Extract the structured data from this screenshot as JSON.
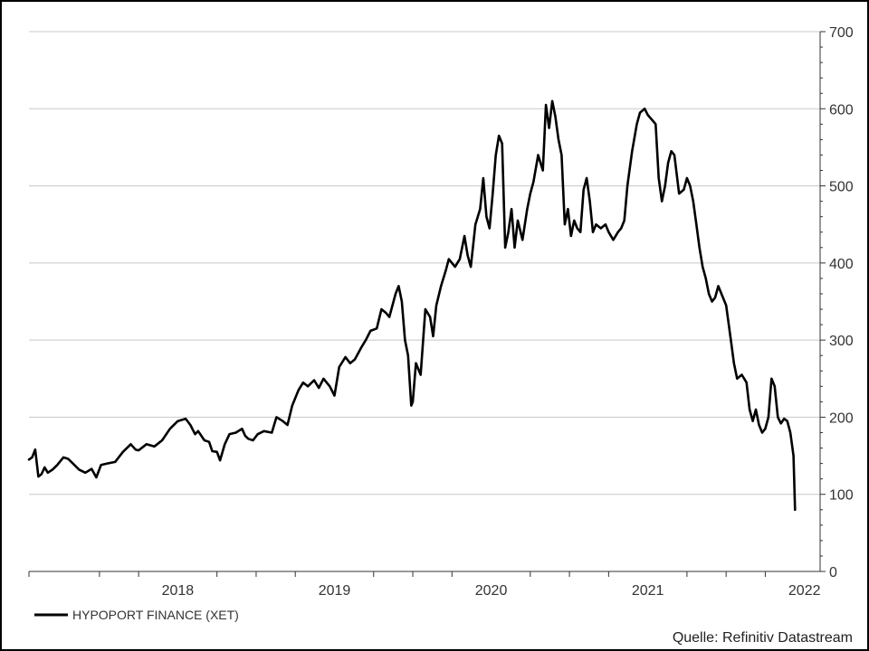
{
  "chart_data": {
    "type": "line",
    "title": "",
    "xlabel": "",
    "ylabel": "",
    "ylim": [
      0,
      700
    ],
    "xlim": [
      2017.3,
      2022.35
    ],
    "y_ticks": [
      0,
      100,
      200,
      300,
      400,
      500,
      600,
      700
    ],
    "y_axis_side": "right",
    "x_year_labels": [
      {
        "label": "2018",
        "x": 2018.25
      },
      {
        "label": "2019",
        "x": 2019.25
      },
      {
        "label": "2020",
        "x": 2020.25
      },
      {
        "label": "2021",
        "x": 2021.25
      },
      {
        "label": "2022",
        "x": 2022.25
      }
    ],
    "x_minor_ticks": [
      2017.3,
      2017.75,
      2018.0,
      2018.5,
      2018.75,
      2019.0,
      2019.5,
      2019.75,
      2020.0,
      2020.5,
      2020.75,
      2021.0,
      2021.5,
      2021.75,
      2022.0
    ],
    "grid": true,
    "legend_position": "bottom-left",
    "series": [
      {
        "name": "HYPOPORT FINANCE (XET)",
        "color": "#000000",
        "points": [
          [
            2017.3,
            145
          ],
          [
            2017.32,
            148
          ],
          [
            2017.34,
            158
          ],
          [
            2017.36,
            123
          ],
          [
            2017.38,
            126
          ],
          [
            2017.4,
            135
          ],
          [
            2017.42,
            128
          ],
          [
            2017.45,
            132
          ],
          [
            2017.48,
            138
          ],
          [
            2017.52,
            148
          ],
          [
            2017.55,
            146
          ],
          [
            2017.58,
            140
          ],
          [
            2017.62,
            132
          ],
          [
            2017.66,
            128
          ],
          [
            2017.7,
            133
          ],
          [
            2017.73,
            122
          ],
          [
            2017.76,
            138
          ],
          [
            2017.8,
            140
          ],
          [
            2017.85,
            142
          ],
          [
            2017.9,
            155
          ],
          [
            2017.95,
            165
          ],
          [
            2017.98,
            158
          ],
          [
            2018.0,
            157
          ],
          [
            2018.05,
            165
          ],
          [
            2018.1,
            162
          ],
          [
            2018.15,
            170
          ],
          [
            2018.2,
            185
          ],
          [
            2018.25,
            195
          ],
          [
            2018.3,
            198
          ],
          [
            2018.33,
            190
          ],
          [
            2018.36,
            178
          ],
          [
            2018.38,
            182
          ],
          [
            2018.42,
            170
          ],
          [
            2018.45,
            168
          ],
          [
            2018.47,
            156
          ],
          [
            2018.5,
            155
          ],
          [
            2018.52,
            144
          ],
          [
            2018.55,
            165
          ],
          [
            2018.58,
            178
          ],
          [
            2018.62,
            180
          ],
          [
            2018.66,
            185
          ],
          [
            2018.68,
            176
          ],
          [
            2018.7,
            172
          ],
          [
            2018.73,
            170
          ],
          [
            2018.76,
            178
          ],
          [
            2018.8,
            182
          ],
          [
            2018.85,
            180
          ],
          [
            2018.88,
            200
          ],
          [
            2018.92,
            195
          ],
          [
            2018.95,
            190
          ],
          [
            2018.98,
            215
          ],
          [
            2019.02,
            235
          ],
          [
            2019.05,
            245
          ],
          [
            2019.08,
            240
          ],
          [
            2019.12,
            248
          ],
          [
            2019.15,
            238
          ],
          [
            2019.18,
            250
          ],
          [
            2019.22,
            240
          ],
          [
            2019.25,
            228
          ],
          [
            2019.28,
            265
          ],
          [
            2019.32,
            278
          ],
          [
            2019.35,
            270
          ],
          [
            2019.38,
            275
          ],
          [
            2019.42,
            290
          ],
          [
            2019.45,
            300
          ],
          [
            2019.48,
            312
          ],
          [
            2019.52,
            315
          ],
          [
            2019.55,
            340
          ],
          [
            2019.58,
            335
          ],
          [
            2019.6,
            330
          ],
          [
            2019.64,
            360
          ],
          [
            2019.66,
            370
          ],
          [
            2019.68,
            350
          ],
          [
            2019.7,
            300
          ],
          [
            2019.72,
            280
          ],
          [
            2019.74,
            215
          ],
          [
            2019.75,
            220
          ],
          [
            2019.77,
            270
          ],
          [
            2019.8,
            255
          ],
          [
            2019.83,
            340
          ],
          [
            2019.86,
            330
          ],
          [
            2019.88,
            305
          ],
          [
            2019.9,
            345
          ],
          [
            2019.93,
            370
          ],
          [
            2019.96,
            390
          ],
          [
            2019.98,
            405
          ],
          [
            2020.02,
            395
          ],
          [
            2020.05,
            405
          ],
          [
            2020.08,
            435
          ],
          [
            2020.1,
            410
          ],
          [
            2020.12,
            395
          ],
          [
            2020.15,
            450
          ],
          [
            2020.18,
            470
          ],
          [
            2020.2,
            510
          ],
          [
            2020.22,
            460
          ],
          [
            2020.24,
            445
          ],
          [
            2020.26,
            490
          ],
          [
            2020.28,
            540
          ],
          [
            2020.3,
            565
          ],
          [
            2020.32,
            555
          ],
          [
            2020.34,
            420
          ],
          [
            2020.36,
            440
          ],
          [
            2020.38,
            470
          ],
          [
            2020.4,
            420
          ],
          [
            2020.42,
            455
          ],
          [
            2020.45,
            430
          ],
          [
            2020.48,
            470
          ],
          [
            2020.5,
            490
          ],
          [
            2020.52,
            505
          ],
          [
            2020.55,
            540
          ],
          [
            2020.58,
            520
          ],
          [
            2020.6,
            605
          ],
          [
            2020.62,
            575
          ],
          [
            2020.64,
            610
          ],
          [
            2020.66,
            590
          ],
          [
            2020.68,
            560
          ],
          [
            2020.7,
            540
          ],
          [
            2020.72,
            450
          ],
          [
            2020.74,
            470
          ],
          [
            2020.76,
            435
          ],
          [
            2020.78,
            455
          ],
          [
            2020.8,
            445
          ],
          [
            2020.82,
            440
          ],
          [
            2020.84,
            495
          ],
          [
            2020.86,
            510
          ],
          [
            2020.88,
            480
          ],
          [
            2020.9,
            440
          ],
          [
            2020.92,
            450
          ],
          [
            2020.95,
            445
          ],
          [
            2020.98,
            450
          ],
          [
            2021.0,
            440
          ],
          [
            2021.03,
            430
          ],
          [
            2021.06,
            440
          ],
          [
            2021.08,
            445
          ],
          [
            2021.1,
            455
          ],
          [
            2021.12,
            500
          ],
          [
            2021.15,
            545
          ],
          [
            2021.18,
            580
          ],
          [
            2021.2,
            595
          ],
          [
            2021.23,
            600
          ],
          [
            2021.25,
            592
          ],
          [
            2021.28,
            585
          ],
          [
            2021.3,
            580
          ],
          [
            2021.32,
            510
          ],
          [
            2021.34,
            480
          ],
          [
            2021.36,
            500
          ],
          [
            2021.38,
            530
          ],
          [
            2021.4,
            545
          ],
          [
            2021.42,
            540
          ],
          [
            2021.45,
            490
          ],
          [
            2021.48,
            495
          ],
          [
            2021.5,
            510
          ],
          [
            2021.52,
            500
          ],
          [
            2021.54,
            480
          ],
          [
            2021.56,
            450
          ],
          [
            2021.58,
            420
          ],
          [
            2021.6,
            395
          ],
          [
            2021.62,
            380
          ],
          [
            2021.64,
            360
          ],
          [
            2021.66,
            350
          ],
          [
            2021.68,
            355
          ],
          [
            2021.7,
            370
          ],
          [
            2021.72,
            360
          ],
          [
            2021.75,
            345
          ],
          [
            2021.78,
            300
          ],
          [
            2021.8,
            270
          ],
          [
            2021.82,
            250
          ],
          [
            2021.85,
            255
          ],
          [
            2021.88,
            245
          ],
          [
            2021.9,
            210
          ],
          [
            2021.92,
            195
          ],
          [
            2021.94,
            210
          ],
          [
            2021.96,
            190
          ],
          [
            2021.98,
            180
          ],
          [
            2022.0,
            185
          ],
          [
            2022.02,
            200
          ],
          [
            2022.04,
            250
          ],
          [
            2022.06,
            240
          ],
          [
            2022.08,
            200
          ],
          [
            2022.1,
            192
          ],
          [
            2022.12,
            198
          ],
          [
            2022.14,
            195
          ],
          [
            2022.16,
            180
          ],
          [
            2022.18,
            150
          ],
          [
            2022.19,
            80
          ]
        ]
      }
    ]
  },
  "legend": {
    "label": "HYPOPORT FINANCE (XET)"
  },
  "source": {
    "text": "Quelle: Refinitiv Datastream"
  },
  "colors": {
    "line": "#000000",
    "grid": "#c8c8c8",
    "frame": "#000000",
    "background": "#ffffff"
  }
}
